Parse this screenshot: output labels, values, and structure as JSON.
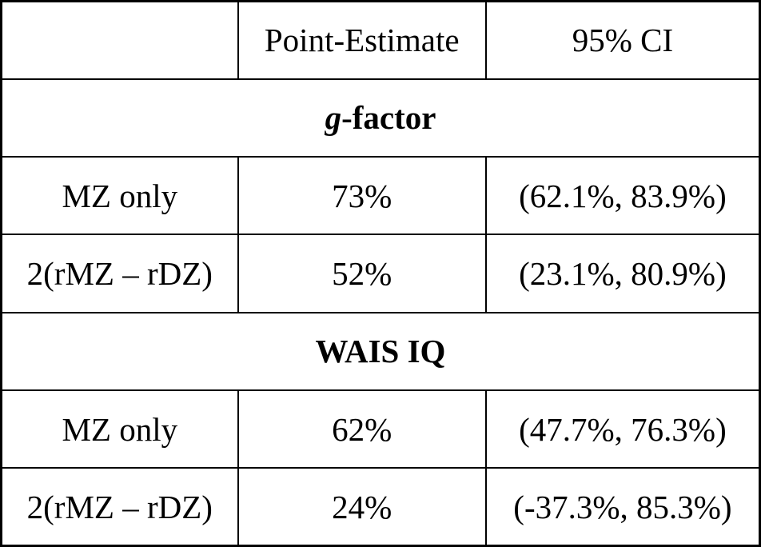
{
  "table": {
    "columns": [
      "",
      "Point-Estimate",
      "95% CI"
    ],
    "sections": [
      {
        "title_italic": "g",
        "title_rest": "-factor",
        "rows": [
          {
            "label": "MZ only",
            "estimate": "73%",
            "ci": "(62.1%, 83.9%)"
          },
          {
            "label": "2(rMZ – rDZ)",
            "estimate": "52%",
            "ci": "(23.1%, 80.9%)"
          }
        ]
      },
      {
        "title_italic": "",
        "title_rest": "WAIS IQ",
        "rows": [
          {
            "label": "MZ only",
            "estimate": "62%",
            "ci": "(47.7%, 76.3%)"
          },
          {
            "label": "2(rMZ – rDZ)",
            "estimate": "24%",
            "ci": "(-37.3%, 85.3%)"
          }
        ]
      }
    ],
    "colors": {
      "border": "#000000",
      "background": "#ffffff",
      "text": "#000000"
    }
  }
}
